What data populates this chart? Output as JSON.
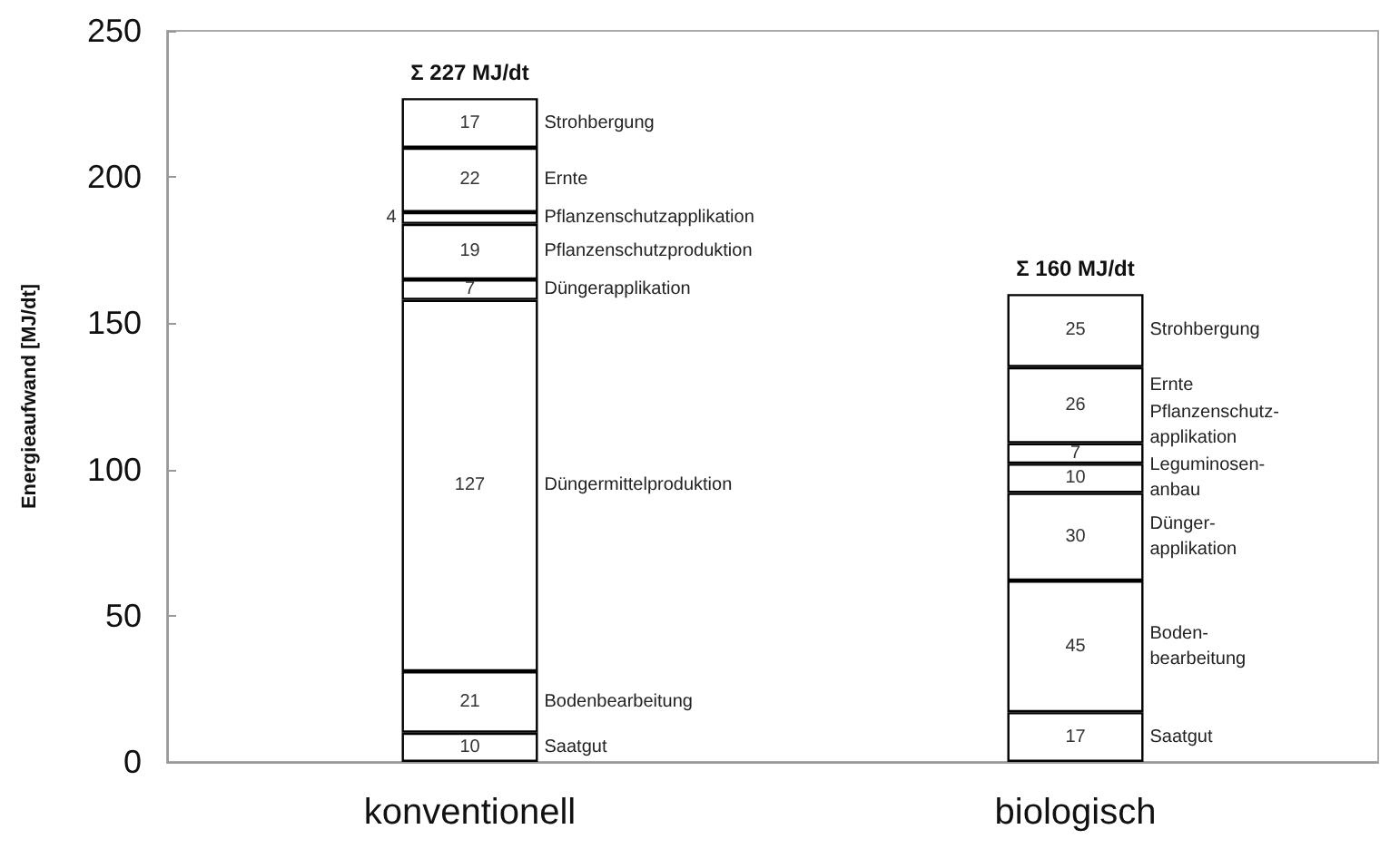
{
  "chart_data": {
    "type": "bar",
    "stacked": true,
    "data_labels": true,
    "ylabel": "Energieaufwand [MJ/dt]",
    "categories": [
      "konventionell",
      "biologisch"
    ],
    "ylim": [
      0,
      250
    ],
    "yticks": [
      0,
      50,
      100,
      150,
      200,
      250
    ],
    "totals": [
      "Σ 227 MJ/dt",
      "Σ 160 MJ/dt"
    ],
    "series": [
      {
        "color": "#ffffff",
        "values": [
          10,
          17
        ]
      },
      {
        "color": "#ffffff",
        "values": [
          21,
          45
        ]
      },
      {
        "color": "#ffffff",
        "values": [
          127,
          null
        ]
      },
      {
        "color": "#ffffff",
        "values": [
          7,
          30
        ]
      },
      {
        "color": "#ffffff",
        "values": [
          null,
          10
        ]
      },
      {
        "color": "#ffffff",
        "values": [
          19,
          null
        ]
      },
      {
        "color": "#ffffff",
        "values": [
          4,
          7
        ]
      },
      {
        "color": "#ffffff",
        "values": [
          22,
          26
        ]
      },
      {
        "color": "#ffffff",
        "values": [
          17,
          25
        ]
      }
    ],
    "annotations": [
      "Saatgut",
      "Bodenbearbeitung",
      "Düngermittelproduktion",
      "Düngerapplikation",
      "Pflanzenschutzproduktion",
      "Pflanzenschutzapplikation",
      "Ernte",
      "Strohbergung",
      "Saatgut",
      "Boden-bearbeitung",
      "Dünger-applikation",
      "Leguminosen-anbau",
      "Pflanzenschutz-applikation",
      "Ernte",
      "Strohbergung"
    ]
  }
}
